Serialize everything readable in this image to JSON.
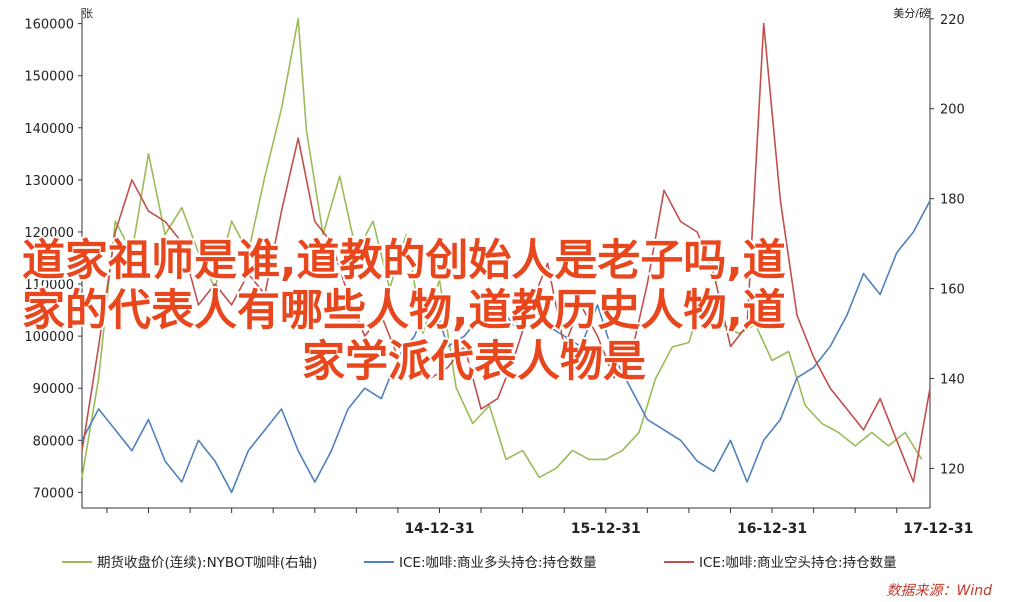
{
  "overlay": {
    "line1": "道家祖师是谁,道教的创始人是老子吗,道",
    "line2": "家的代表人有哪些人物,道教历史人物,道",
    "line3": "家学派代表人物是"
  },
  "source_label": "数据来源：Wind",
  "chart_data": {
    "type": "line",
    "left_axis": {
      "unit": "张",
      "ticks": [
        70000,
        80000,
        90000,
        100000,
        110000,
        120000,
        130000,
        140000,
        150000,
        160000
      ],
      "ylim": [
        67000,
        163000
      ]
    },
    "right_axis": {
      "unit": "美分/磅",
      "ticks": [
        120,
        140,
        160,
        180,
        200,
        220
      ],
      "ylim": [
        111.2,
        222.4
      ]
    },
    "x_ticks": [
      "14-12-31",
      "15-12-31",
      "16-12-31",
      "17-12-31"
    ],
    "x_range": [
      2012.85,
      2017.95
    ],
    "colors": {
      "price": "#9bbb59",
      "long": "#4f81bd",
      "short": "#c0504d"
    },
    "series": [
      {
        "key": "price",
        "axis": "right",
        "name": "期货收盘价(连续):NYBOT咖啡(右轴)",
        "x": [
          2012.85,
          2012.95,
          2013.05,
          2013.15,
          2013.25,
          2013.35,
          2013.45,
          2013.55,
          2013.65,
          2013.75,
          2013.85,
          2013.95,
          2014.05,
          2014.15,
          2014.2,
          2014.3,
          2014.4,
          2014.5,
          2014.6,
          2014.7,
          2014.8,
          2014.9,
          2015.0,
          2015.1,
          2015.2,
          2015.3,
          2015.4,
          2015.5,
          2015.6,
          2015.7,
          2015.8,
          2015.9,
          2016.0,
          2016.1,
          2016.2,
          2016.3,
          2016.4,
          2016.5,
          2016.6,
          2016.7,
          2016.8,
          2016.9,
          2017.0,
          2017.1,
          2017.2,
          2017.3,
          2017.4,
          2017.5,
          2017.6,
          2017.7,
          2017.8,
          2017.9
        ],
        "values": [
          118,
          140,
          175,
          168,
          190,
          172,
          178,
          168,
          160,
          175,
          168,
          185,
          200,
          220,
          195,
          172,
          185,
          168,
          175,
          160,
          172,
          150,
          162,
          138,
          130,
          134,
          122,
          124,
          118,
          120,
          124,
          122,
          122,
          124,
          128,
          140,
          147,
          148,
          160,
          152,
          150,
          152,
          144,
          146,
          134,
          130,
          128,
          125,
          128,
          125,
          128,
          122
        ]
      },
      {
        "key": "long",
        "axis": "left",
        "name": "ICE:咖啡:商业多头持仓:持仓数量",
        "x": [
          2012.85,
          2012.95,
          2013.05,
          2013.15,
          2013.25,
          2013.35,
          2013.45,
          2013.55,
          2013.65,
          2013.75,
          2013.85,
          2013.95,
          2014.05,
          2014.15,
          2014.25,
          2014.35,
          2014.45,
          2014.55,
          2014.65,
          2014.75,
          2014.85,
          2014.95,
          2015.05,
          2015.15,
          2015.25,
          2015.35,
          2015.45,
          2015.55,
          2015.65,
          2015.75,
          2015.85,
          2015.95,
          2016.05,
          2016.15,
          2016.25,
          2016.35,
          2016.45,
          2016.55,
          2016.65,
          2016.75,
          2016.85,
          2016.95,
          2017.05,
          2017.15,
          2017.25,
          2017.35,
          2017.45,
          2017.55,
          2017.65,
          2017.75,
          2017.85,
          2017.95
        ],
        "values": [
          80000,
          86000,
          82000,
          78000,
          84000,
          76000,
          72000,
          80000,
          76000,
          70000,
          78000,
          82000,
          86000,
          78000,
          72000,
          78000,
          86000,
          90000,
          88000,
          96000,
          100000,
          108000,
          98000,
          100000,
          104000,
          106000,
          102000,
          108000,
          102000,
          100000,
          98000,
          106000,
          96000,
          90000,
          84000,
          82000,
          80000,
          76000,
          74000,
          80000,
          72000,
          80000,
          84000,
          92000,
          94000,
          98000,
          104000,
          112000,
          108000,
          116000,
          120000,
          126000
        ]
      },
      {
        "key": "short",
        "axis": "left",
        "name": "ICE:咖啡:商业空头持仓:持仓数量",
        "x": [
          2012.85,
          2012.95,
          2013.05,
          2013.15,
          2013.25,
          2013.35,
          2013.45,
          2013.55,
          2013.65,
          2013.75,
          2013.85,
          2013.95,
          2014.05,
          2014.15,
          2014.25,
          2014.35,
          2014.45,
          2014.55,
          2014.65,
          2014.75,
          2014.85,
          2014.95,
          2015.05,
          2015.15,
          2015.25,
          2015.35,
          2015.45,
          2015.55,
          2015.65,
          2015.75,
          2015.85,
          2015.95,
          2016.05,
          2016.15,
          2016.25,
          2016.35,
          2016.45,
          2016.55,
          2016.65,
          2016.75,
          2016.85,
          2016.95,
          2017.05,
          2017.15,
          2017.25,
          2017.35,
          2017.45,
          2017.55,
          2017.65,
          2017.75,
          2017.85,
          2017.95
        ],
        "values": [
          78000,
          98000,
          120000,
          130000,
          124000,
          122000,
          118000,
          106000,
          110000,
          106000,
          112000,
          108000,
          124000,
          138000,
          122000,
          118000,
          108000,
          100000,
          104000,
          96000,
          98000,
          92000,
          94000,
          98000,
          86000,
          88000,
          96000,
          106000,
          114000,
          98000,
          106000,
          100000,
          92000,
          96000,
          110000,
          128000,
          122000,
          120000,
          112000,
          98000,
          102000,
          160000,
          126000,
          104000,
          96000,
          90000,
          86000,
          82000,
          88000,
          80000,
          72000,
          90000
        ]
      }
    ]
  }
}
